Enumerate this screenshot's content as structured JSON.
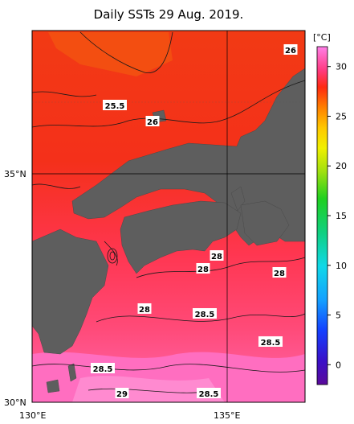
{
  "title": "Daily SSTs 29 Aug. 2019.",
  "axes": {
    "lon_ticks": [
      "130°E",
      "135°E"
    ],
    "lat_ticks": [
      "30°N",
      "35°N"
    ]
  },
  "colorbar": {
    "unit": "[°C]",
    "ticks": [
      "30",
      "25",
      "20",
      "15",
      "10",
      "5",
      "0"
    ],
    "range": [
      -2,
      32
    ]
  },
  "contour_labels": [
    "26",
    "25.5",
    "26",
    "28",
    "28",
    "28",
    "28",
    "28.5",
    "28.5",
    "28.5",
    "29",
    "28.5"
  ],
  "colors": {
    "land": "#606060",
    "sst_25": "#f03c14",
    "sst_26": "#f52a1c",
    "sst_28": "#ff3a50",
    "sst_28_5": "#ff4f78",
    "sst_29": "#ff6ab4"
  }
}
